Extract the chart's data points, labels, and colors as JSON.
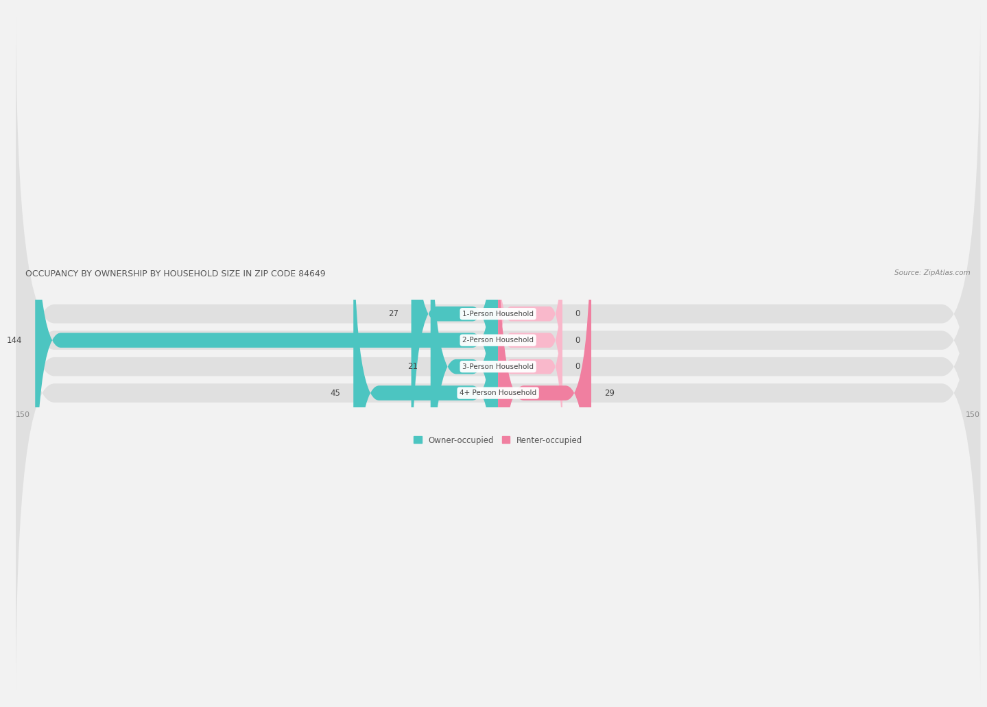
{
  "title": "OCCUPANCY BY OWNERSHIP BY HOUSEHOLD SIZE IN ZIP CODE 84649",
  "source": "Source: ZipAtlas.com",
  "categories": [
    "1-Person Household",
    "2-Person Household",
    "3-Person Household",
    "4+ Person Household"
  ],
  "owner_values": [
    27,
    144,
    21,
    45
  ],
  "renter_values": [
    0,
    0,
    0,
    29
  ],
  "owner_color": "#4CC5C1",
  "renter_color": "#F07FA0",
  "axis_max": 150,
  "axis_min": -150,
  "bg_color": "#f2f2f2",
  "bar_bg_color": "#e2e2e2",
  "bar_bg_color2": "#e8e8e8"
}
